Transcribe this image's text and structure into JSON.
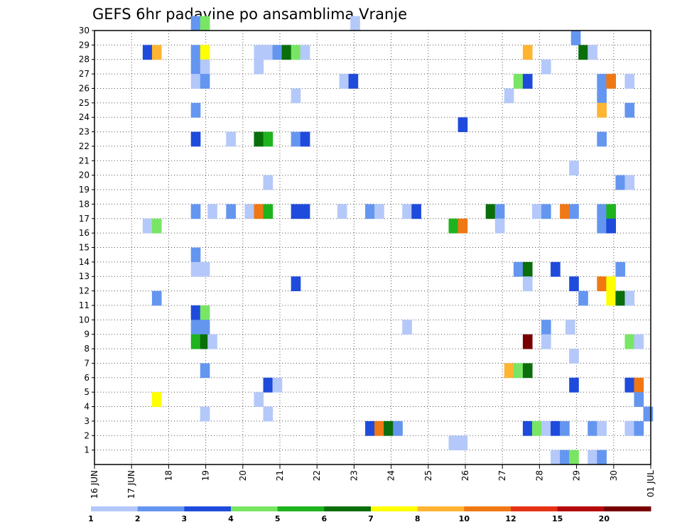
{
  "chart_data": {
    "type": "heatmap",
    "title": "GEFS 6hr padavine po ansamblima Vranje",
    "xlabel": "",
    "ylabel": "",
    "x_tick_labels": [
      "16 JUN",
      "17 JUN",
      "18",
      "19",
      "20",
      "21",
      "22",
      "23",
      "24",
      "25",
      "26",
      "27",
      "28",
      "29",
      "30",
      "01 JUL"
    ],
    "y_tick_labels": [
      "1",
      "2",
      "3",
      "4",
      "5",
      "6",
      "7",
      "8",
      "9",
      "10",
      "11",
      "12",
      "13",
      "14",
      "15",
      "16",
      "17",
      "18",
      "19",
      "20",
      "21",
      "22",
      "23",
      "24",
      "25",
      "26",
      "27",
      "28",
      "29",
      "30"
    ],
    "x_range_days": [
      16,
      31
    ],
    "y_range": [
      0,
      30
    ],
    "grid": true,
    "legend_position": "bottom",
    "colorbar": {
      "colors": [
        "#b4c8fa",
        "#6496f0",
        "#1e4bdc",
        "#78e664",
        "#1eb41e",
        "#0a6e0a",
        "#ffff00",
        "#ffb432",
        "#f07814",
        "#e63214",
        "#b40a0a",
        "#780000"
      ],
      "labels": [
        "1",
        "2",
        "3",
        "4",
        "5",
        "6",
        "7",
        "8",
        "10",
        "12",
        "15",
        "20"
      ]
    },
    "cells": [
      [
        18.6,
        30,
        1
      ],
      [
        18.85,
        30,
        3
      ],
      [
        22.9,
        30,
        0
      ],
      [
        28.85,
        29,
        1
      ],
      [
        17.3,
        28,
        2
      ],
      [
        17.55,
        28,
        7
      ],
      [
        18.6,
        28,
        1
      ],
      [
        18.85,
        28,
        6
      ],
      [
        20.3,
        28,
        0
      ],
      [
        20.55,
        28,
        0
      ],
      [
        20.8,
        28,
        1
      ],
      [
        21.05,
        28,
        5
      ],
      [
        21.3,
        28,
        3
      ],
      [
        21.55,
        28,
        0
      ],
      [
        27.55,
        28,
        7
      ],
      [
        29.05,
        28,
        5
      ],
      [
        29.3,
        28,
        0
      ],
      [
        18.6,
        27,
        1
      ],
      [
        18.85,
        27,
        0
      ],
      [
        20.3,
        27,
        0
      ],
      [
        28.05,
        27,
        0
      ],
      [
        18.6,
        26,
        0
      ],
      [
        18.85,
        26,
        1
      ],
      [
        22.6,
        26,
        0
      ],
      [
        22.85,
        26,
        2
      ],
      [
        27.3,
        26,
        3
      ],
      [
        27.55,
        26,
        2
      ],
      [
        29.55,
        26,
        1
      ],
      [
        29.8,
        26,
        8
      ],
      [
        30.3,
        26,
        0
      ],
      [
        21.3,
        25,
        0
      ],
      [
        27.05,
        25,
        0
      ],
      [
        29.55,
        25,
        1
      ],
      [
        18.6,
        24,
        1
      ],
      [
        29.55,
        24,
        7
      ],
      [
        30.3,
        24,
        1
      ],
      [
        25.8,
        23,
        2
      ],
      [
        18.6,
        22,
        2
      ],
      [
        19.55,
        22,
        0
      ],
      [
        20.3,
        22,
        5
      ],
      [
        20.55,
        22,
        4
      ],
      [
        21.3,
        22,
        1
      ],
      [
        21.55,
        22,
        2
      ],
      [
        29.55,
        22,
        1
      ],
      [
        28.8,
        20,
        0
      ],
      [
        20.55,
        19,
        0
      ],
      [
        30.05,
        19,
        1
      ],
      [
        30.3,
        19,
        0
      ],
      [
        18.6,
        17,
        1
      ],
      [
        19.05,
        17,
        0
      ],
      [
        19.55,
        17,
        1
      ],
      [
        20.05,
        17,
        0
      ],
      [
        20.3,
        17,
        8
      ],
      [
        20.55,
        17,
        4
      ],
      [
        21.3,
        17,
        2
      ],
      [
        21.55,
        17,
        2
      ],
      [
        22.55,
        17,
        0
      ],
      [
        23.3,
        17,
        1
      ],
      [
        23.55,
        17,
        0
      ],
      [
        24.3,
        17,
        0
      ],
      [
        24.55,
        17,
        2
      ],
      [
        26.55,
        17,
        5
      ],
      [
        26.8,
        17,
        1
      ],
      [
        27.8,
        17,
        0
      ],
      [
        28.05,
        17,
        1
      ],
      [
        28.55,
        17,
        8
      ],
      [
        28.8,
        17,
        1
      ],
      [
        29.55,
        17,
        1
      ],
      [
        29.8,
        17,
        4
      ],
      [
        17.3,
        16,
        0
      ],
      [
        17.55,
        16,
        3
      ],
      [
        25.55,
        16,
        4
      ],
      [
        25.8,
        16,
        8
      ],
      [
        26.8,
        16,
        0
      ],
      [
        29.55,
        16,
        1
      ],
      [
        29.8,
        16,
        2
      ],
      [
        18.6,
        14,
        1
      ],
      [
        18.6,
        13,
        0
      ],
      [
        18.85,
        13,
        0
      ],
      [
        27.3,
        13,
        1
      ],
      [
        27.55,
        13,
        5
      ],
      [
        28.3,
        13,
        2
      ],
      [
        30.05,
        13,
        1
      ],
      [
        21.3,
        12,
        2
      ],
      [
        27.55,
        12,
        0
      ],
      [
        28.8,
        12,
        2
      ],
      [
        29.55,
        12,
        8
      ],
      [
        29.8,
        12,
        6
      ],
      [
        17.55,
        11,
        1
      ],
      [
        29.05,
        11,
        1
      ],
      [
        29.8,
        11,
        6
      ],
      [
        30.05,
        11,
        5
      ],
      [
        30.3,
        11,
        0
      ],
      [
        18.6,
        10,
        2
      ],
      [
        18.85,
        10,
        3
      ],
      [
        18.6,
        9,
        1
      ],
      [
        18.85,
        9,
        1
      ],
      [
        24.3,
        9,
        0
      ],
      [
        28.05,
        9,
        1
      ],
      [
        28.7,
        9,
        0
      ],
      [
        18.6,
        8,
        4
      ],
      [
        18.85,
        8,
        5
      ],
      [
        19.05,
        8,
        0
      ],
      [
        27.55,
        8,
        11
      ],
      [
        28.05,
        8,
        0
      ],
      [
        30.3,
        8,
        3
      ],
      [
        30.55,
        8,
        0
      ],
      [
        28.8,
        7,
        0
      ],
      [
        18.85,
        6,
        1
      ],
      [
        27.05,
        6,
        7
      ],
      [
        27.3,
        6,
        3
      ],
      [
        27.55,
        6,
        5
      ],
      [
        20.55,
        5,
        2
      ],
      [
        20.8,
        5,
        0
      ],
      [
        28.8,
        5,
        2
      ],
      [
        30.3,
        5,
        2
      ],
      [
        30.55,
        5,
        8
      ],
      [
        17.55,
        4,
        6
      ],
      [
        20.3,
        4,
        0
      ],
      [
        30.55,
        4,
        1
      ],
      [
        18.85,
        3,
        0
      ],
      [
        20.55,
        3,
        0
      ],
      [
        30.8,
        3,
        1
      ],
      [
        23.3,
        2,
        2
      ],
      [
        23.55,
        2,
        8
      ],
      [
        23.8,
        2,
        5
      ],
      [
        24.05,
        2,
        1
      ],
      [
        27.55,
        2,
        2
      ],
      [
        27.8,
        2,
        3
      ],
      [
        28.05,
        2,
        0
      ],
      [
        28.3,
        2,
        2
      ],
      [
        28.55,
        2,
        1
      ],
      [
        29.3,
        2,
        1
      ],
      [
        29.55,
        2,
        0
      ],
      [
        30.3,
        2,
        0
      ],
      [
        30.55,
        2,
        1
      ],
      [
        25.55,
        1,
        0
      ],
      [
        25.8,
        1,
        0
      ],
      [
        28.3,
        0,
        0
      ],
      [
        28.55,
        0,
        1
      ],
      [
        28.8,
        0,
        3
      ],
      [
        29.3,
        0,
        0
      ],
      [
        29.55,
        0,
        1
      ]
    ]
  }
}
